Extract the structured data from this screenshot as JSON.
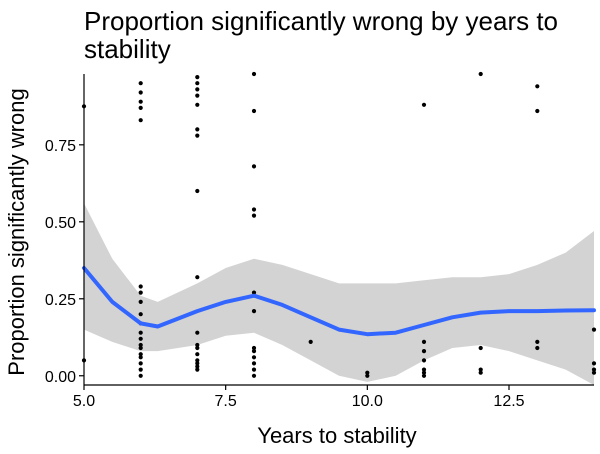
{
  "chart_data": {
    "type": "scatter",
    "title_lines": [
      "Proportion significantly wrong by years to",
      "stability"
    ],
    "xlabel": "Years to stability",
    "ylabel": "Proportion significantly wrong",
    "xlim": [
      5.0,
      14.0
    ],
    "ylim": [
      -0.03,
      0.98
    ],
    "x_ticks": [
      5.0,
      7.5,
      10.0,
      12.5
    ],
    "x_tick_labels": [
      "5.0",
      "7.5",
      "10.0",
      "12.5"
    ],
    "y_ticks": [
      0.0,
      0.25,
      0.5,
      0.75
    ],
    "y_tick_labels": [
      "0.00",
      "0.25",
      "0.50",
      "0.75"
    ],
    "grid": false,
    "legend": "none",
    "colors": {
      "points": "#000000",
      "smooth_line": "#3366ff",
      "ribbon": "#d3d3d3"
    },
    "points": [
      {
        "x": 5,
        "y": 0.875
      },
      {
        "x": 5,
        "y": 0.05
      },
      {
        "x": 6,
        "y": 0.95
      },
      {
        "x": 6,
        "y": 0.92
      },
      {
        "x": 6,
        "y": 0.89
      },
      {
        "x": 6,
        "y": 0.87
      },
      {
        "x": 6,
        "y": 0.83
      },
      {
        "x": 6,
        "y": 0.29
      },
      {
        "x": 6,
        "y": 0.27
      },
      {
        "x": 6,
        "y": 0.24
      },
      {
        "x": 6,
        "y": 0.2
      },
      {
        "x": 6,
        "y": 0.17
      },
      {
        "x": 6,
        "y": 0.14
      },
      {
        "x": 6,
        "y": 0.12
      },
      {
        "x": 6,
        "y": 0.1
      },
      {
        "x": 6,
        "y": 0.09
      },
      {
        "x": 6,
        "y": 0.07
      },
      {
        "x": 6,
        "y": 0.06
      },
      {
        "x": 6,
        "y": 0.04
      },
      {
        "x": 6,
        "y": 0.02
      },
      {
        "x": 6,
        "y": 0.0
      },
      {
        "x": 7,
        "y": 0.97
      },
      {
        "x": 7,
        "y": 0.95
      },
      {
        "x": 7,
        "y": 0.93
      },
      {
        "x": 7,
        "y": 0.91
      },
      {
        "x": 7,
        "y": 0.88
      },
      {
        "x": 7,
        "y": 0.8
      },
      {
        "x": 7,
        "y": 0.78
      },
      {
        "x": 7,
        "y": 0.6
      },
      {
        "x": 7,
        "y": 0.32
      },
      {
        "x": 7,
        "y": 0.14
      },
      {
        "x": 7,
        "y": 0.1
      },
      {
        "x": 7,
        "y": 0.09
      },
      {
        "x": 7,
        "y": 0.07
      },
      {
        "x": 7,
        "y": 0.05
      },
      {
        "x": 7,
        "y": 0.04
      },
      {
        "x": 7,
        "y": 0.03
      },
      {
        "x": 7,
        "y": 0.02
      },
      {
        "x": 8,
        "y": 0.98
      },
      {
        "x": 8,
        "y": 0.86
      },
      {
        "x": 8,
        "y": 0.68
      },
      {
        "x": 8,
        "y": 0.54
      },
      {
        "x": 8,
        "y": 0.52
      },
      {
        "x": 8,
        "y": 0.27
      },
      {
        "x": 8,
        "y": 0.21
      },
      {
        "x": 8,
        "y": 0.09
      },
      {
        "x": 8,
        "y": 0.08
      },
      {
        "x": 8,
        "y": 0.06
      },
      {
        "x": 8,
        "y": 0.04
      },
      {
        "x": 8,
        "y": 0.02
      },
      {
        "x": 8,
        "y": 0.0
      },
      {
        "x": 9,
        "y": 0.11
      },
      {
        "x": 10,
        "y": 0.01
      },
      {
        "x": 10,
        "y": 0.0
      },
      {
        "x": 11,
        "y": 0.88
      },
      {
        "x": 11,
        "y": 0.11
      },
      {
        "x": 11,
        "y": 0.08
      },
      {
        "x": 11,
        "y": 0.05
      },
      {
        "x": 11,
        "y": 0.02
      },
      {
        "x": 11,
        "y": 0.01
      },
      {
        "x": 11,
        "y": 0.0
      },
      {
        "x": 12,
        "y": 0.98
      },
      {
        "x": 12,
        "y": 0.09
      },
      {
        "x": 12,
        "y": 0.02
      },
      {
        "x": 12,
        "y": 0.01
      },
      {
        "x": 13,
        "y": 0.94
      },
      {
        "x": 13,
        "y": 0.86
      },
      {
        "x": 13,
        "y": 0.11
      },
      {
        "x": 13,
        "y": 0.09
      },
      {
        "x": 14,
        "y": 0.15
      },
      {
        "x": 14,
        "y": 0.04
      },
      {
        "x": 14,
        "y": 0.02
      },
      {
        "x": 14,
        "y": 0.01
      }
    ],
    "smooth": {
      "x": [
        5.0,
        5.5,
        6.0,
        6.3,
        7.0,
        7.5,
        8.0,
        8.5,
        9.0,
        9.5,
        10.0,
        10.5,
        11.0,
        11.5,
        12.0,
        12.5,
        13.0,
        13.5,
        14.0
      ],
      "y": [
        0.35,
        0.24,
        0.17,
        0.16,
        0.21,
        0.24,
        0.26,
        0.23,
        0.19,
        0.15,
        0.135,
        0.14,
        0.165,
        0.19,
        0.205,
        0.21,
        0.21,
        0.212,
        0.213
      ],
      "lower": [
        0.15,
        0.11,
        0.08,
        0.08,
        0.1,
        0.13,
        0.14,
        0.1,
        0.05,
        0.0,
        -0.02,
        0.0,
        0.05,
        0.09,
        0.1,
        0.08,
        0.05,
        0.02,
        -0.03
      ],
      "upper": [
        0.56,
        0.38,
        0.26,
        0.24,
        0.3,
        0.35,
        0.38,
        0.36,
        0.33,
        0.3,
        0.3,
        0.3,
        0.31,
        0.32,
        0.32,
        0.33,
        0.36,
        0.4,
        0.47
      ]
    }
  }
}
